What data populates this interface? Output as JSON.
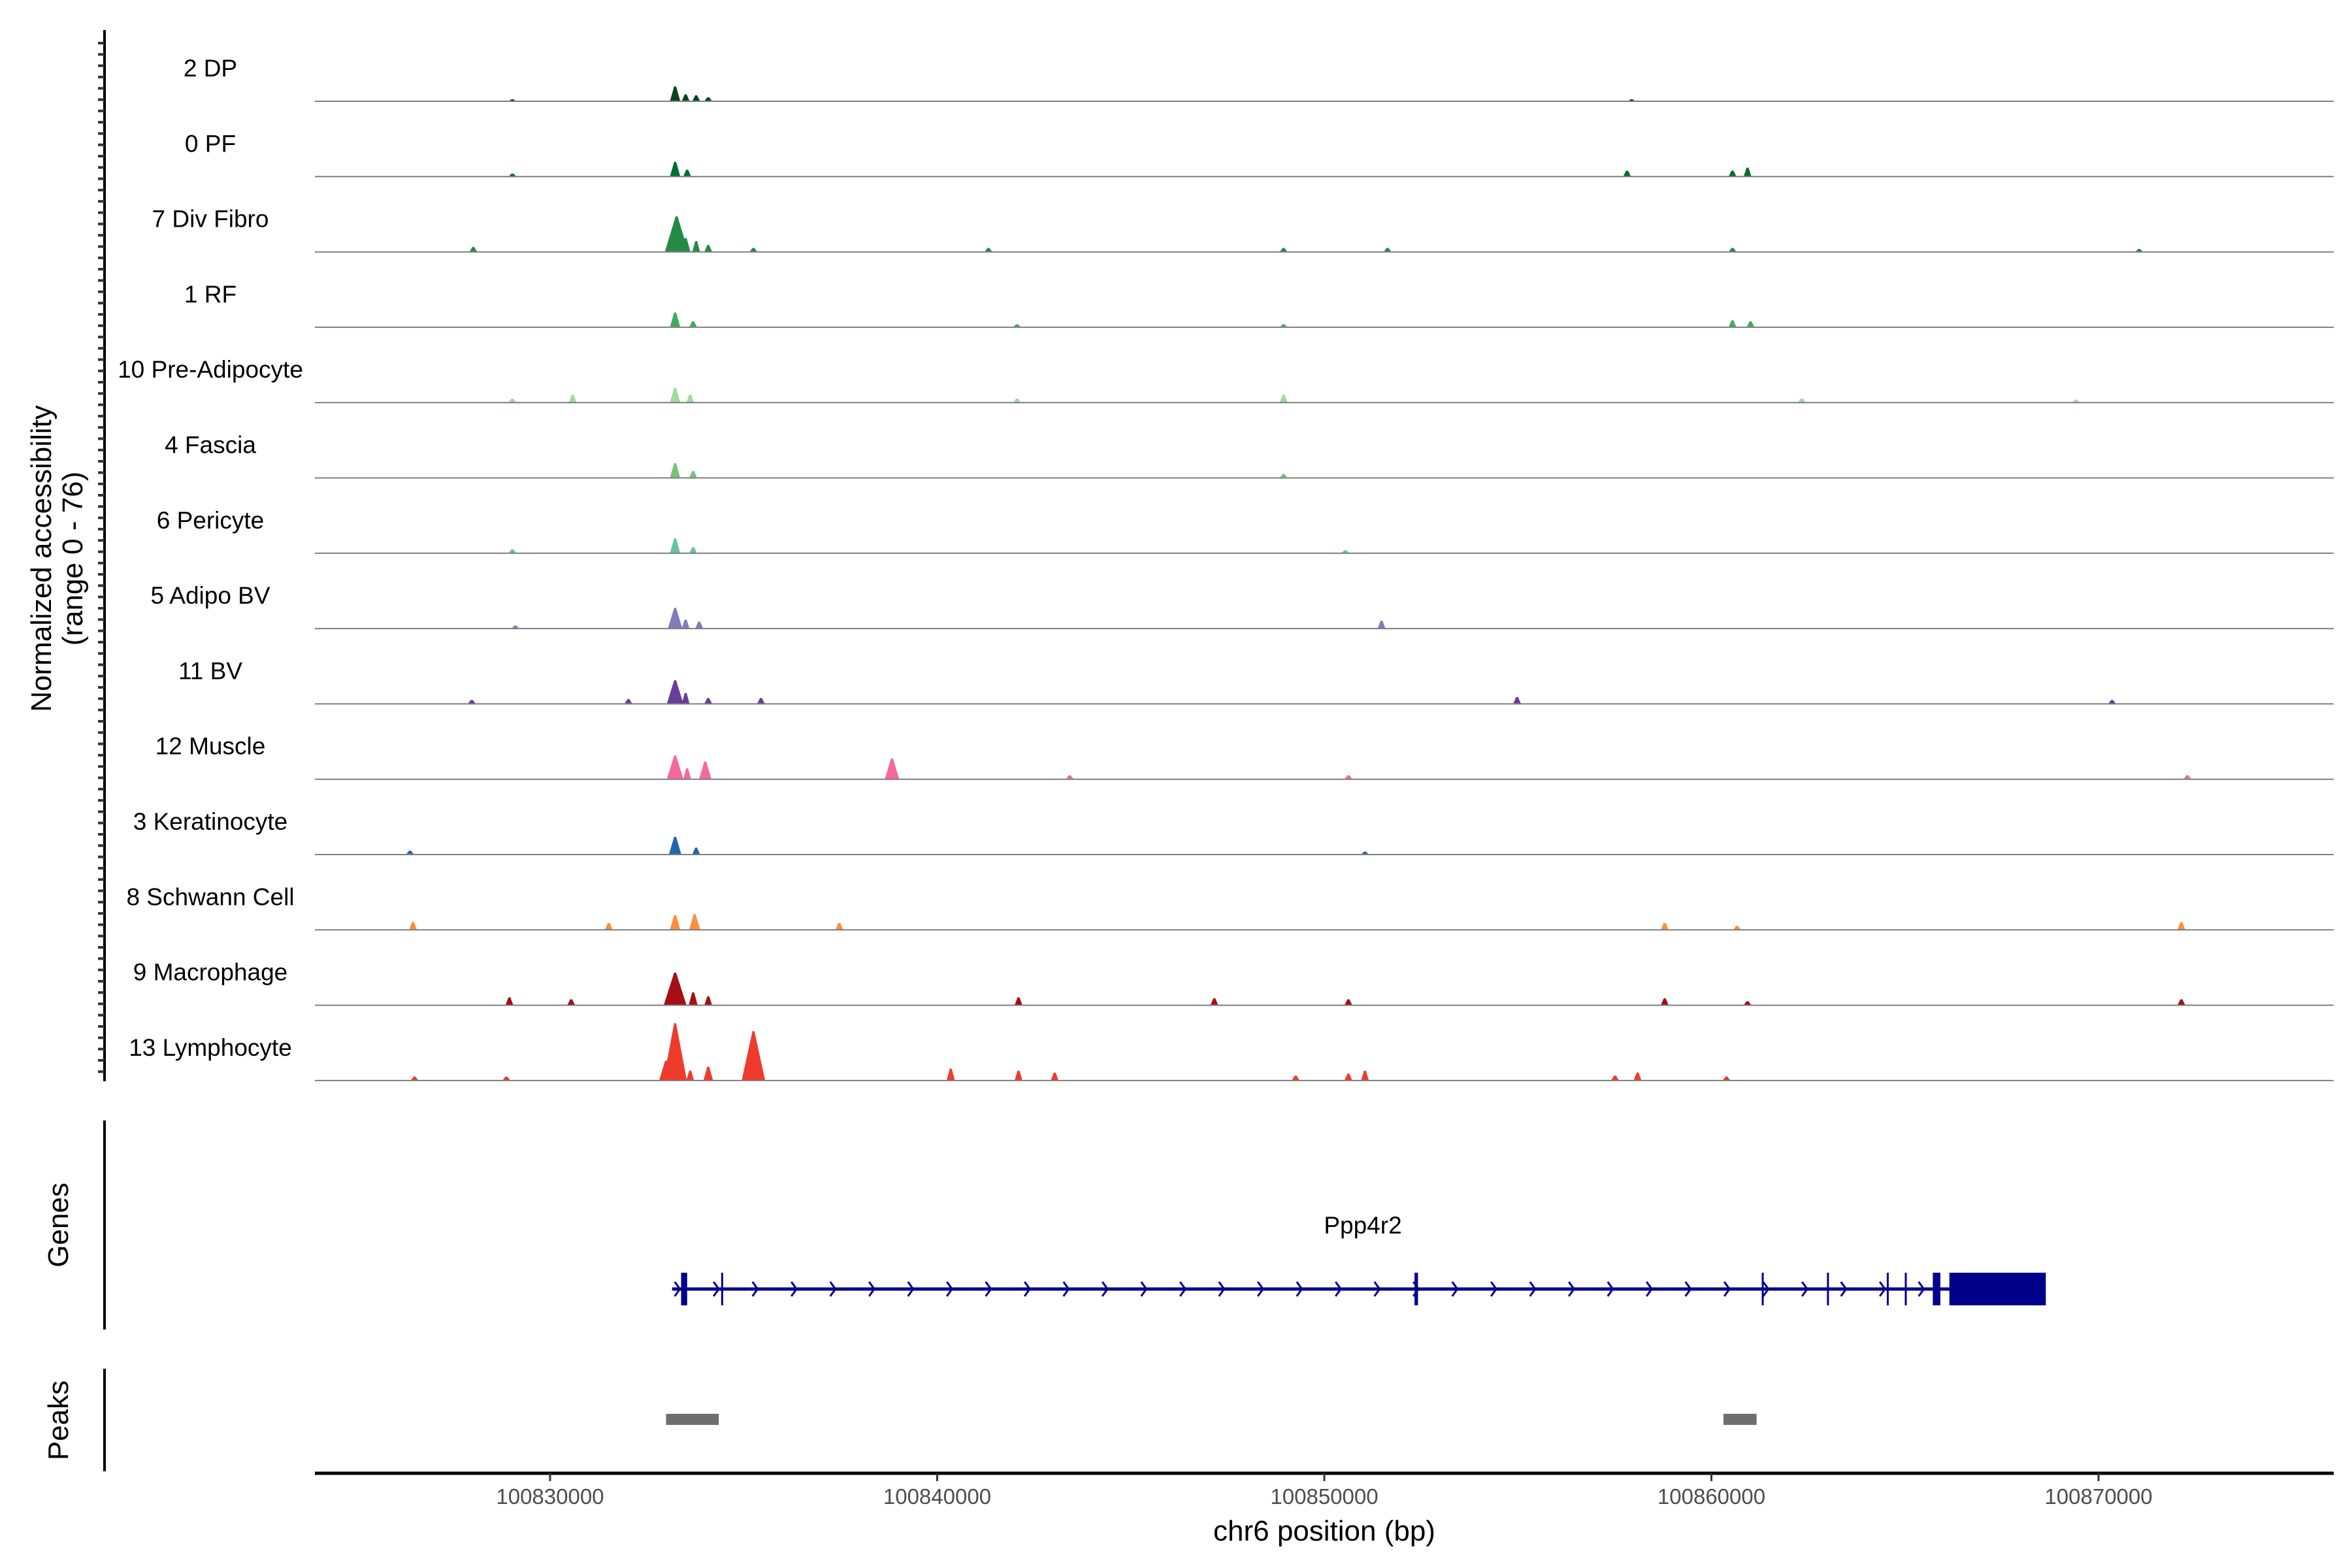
{
  "chart_data": {
    "type": "area",
    "title": "",
    "ylabel": "Normalized accessibility",
    "ylabel_range": "(range 0 - 76)",
    "ylim": [
      0,
      76
    ],
    "xlabel": "chr6 position (bp)",
    "xlim": [
      100823925,
      100876075
    ],
    "xticks": [
      100830000,
      100840000,
      100850000,
      100860000,
      100870000
    ],
    "xtick_labels": [
      "100830000",
      "100840000",
      "100850000",
      "100860000",
      "100870000"
    ],
    "tracks": [
      {
        "name": "2 DP",
        "color": "#00441b",
        "peaks": [
          [
            100833230,
            15
          ],
          [
            100833502,
            7
          ],
          [
            100833774,
            6
          ],
          [
            100834086,
            4
          ],
          [
            100829027,
            2
          ],
          [
            100857938,
            2
          ]
        ]
      },
      {
        "name": "0 PF",
        "color": "#006d2c",
        "peaks": [
          [
            100833230,
            15
          ],
          [
            100833541,
            7
          ],
          [
            100857821,
            6
          ],
          [
            100860544,
            6
          ],
          [
            100860933,
            9
          ],
          [
            100829027,
            3
          ]
        ]
      },
      {
        "name": "7 Div Fibro",
        "color": "#238b45",
        "peaks": [
          [
            100833268,
            36
          ],
          [
            100833502,
            14
          ],
          [
            100833774,
            11
          ],
          [
            100834086,
            7
          ],
          [
            100828016,
            5
          ],
          [
            100835253,
            4
          ],
          [
            100841323,
            4
          ],
          [
            100848949,
            4
          ],
          [
            100851634,
            4
          ],
          [
            100860544,
            4
          ],
          [
            100871050,
            3
          ]
        ]
      },
      {
        "name": "1 RF",
        "color": "#41ab5d",
        "peaks": [
          [
            100833230,
            15
          ],
          [
            100833696,
            6
          ],
          [
            100860544,
            7
          ],
          [
            100861011,
            6
          ],
          [
            100848949,
            3
          ],
          [
            100842062,
            3
          ]
        ]
      },
      {
        "name": "10 Pre-Adipocyte",
        "color": "#a1d99b",
        "peaks": [
          [
            100833230,
            15
          ],
          [
            100833619,
            8
          ],
          [
            100830584,
            8
          ],
          [
            100848949,
            8
          ],
          [
            100842062,
            4
          ],
          [
            100862334,
            4
          ],
          [
            100869416,
            3
          ],
          [
            100829027,
            4
          ]
        ]
      },
      {
        "name": "4 Fascia",
        "color": "#74c476",
        "peaks": [
          [
            100833230,
            15
          ],
          [
            100833696,
            7
          ],
          [
            100848949,
            4
          ]
        ]
      },
      {
        "name": "6 Pericyte",
        "color": "#66c2a4",
        "peaks": [
          [
            100833230,
            15
          ],
          [
            100833696,
            6
          ],
          [
            100829027,
            4
          ],
          [
            100850544,
            3
          ]
        ]
      },
      {
        "name": "5 Adipo BV",
        "color": "#807dba",
        "peaks": [
          [
            100833230,
            21
          ],
          [
            100833502,
            9
          ],
          [
            100833852,
            7
          ],
          [
            100851478,
            8
          ],
          [
            100829105,
            3
          ]
        ]
      },
      {
        "name": "11 BV",
        "color": "#6a3d9a",
        "peaks": [
          [
            100833230,
            24
          ],
          [
            100833502,
            11
          ],
          [
            100834086,
            6
          ],
          [
            100835447,
            6
          ],
          [
            100854980,
            7
          ],
          [
            100870350,
            4
          ],
          [
            100827977,
            4
          ],
          [
            100832023,
            5
          ]
        ]
      },
      {
        "name": "12 Muscle",
        "color": "#f768a1",
        "peaks": [
          [
            100833230,
            24
          ],
          [
            100834008,
            18
          ],
          [
            100833541,
            11
          ],
          [
            100838833,
            21
          ],
          [
            100872296,
            4
          ],
          [
            100843424,
            4
          ],
          [
            100850622,
            4
          ]
        ]
      },
      {
        "name": "3 Keratinocyte",
        "color": "#2166ac",
        "peaks": [
          [
            100833230,
            18
          ],
          [
            100833774,
            7
          ],
          [
            100826381,
            4
          ],
          [
            100851050,
            3
          ]
        ]
      },
      {
        "name": "8 Schwann Cell",
        "color": "#fd8d3c",
        "peaks": [
          [
            100833230,
            15
          ],
          [
            100833735,
            16
          ],
          [
            100826459,
            8
          ],
          [
            100831517,
            7
          ],
          [
            100837471,
            7
          ],
          [
            100858793,
            7
          ],
          [
            100872140,
            8
          ],
          [
            100860661,
            4
          ]
        ]
      },
      {
        "name": "9 Macrophage",
        "color": "#a50f15",
        "peaks": [
          [
            100833230,
            33
          ],
          [
            100833696,
            13
          ],
          [
            100834086,
            9
          ],
          [
            100828949,
            8
          ],
          [
            100842101,
            8
          ],
          [
            100847159,
            7
          ],
          [
            100850622,
            6
          ],
          [
            100858793,
            7
          ],
          [
            100860933,
            4
          ],
          [
            100872140,
            6
          ],
          [
            100830545,
            6
          ]
        ]
      },
      {
        "name": "13 Lymphocyte",
        "color": "#ef3b2c",
        "peaks": [
          [
            100833230,
            58
          ],
          [
            100835253,
            50
          ],
          [
            100832996,
            20
          ],
          [
            100834086,
            14
          ],
          [
            100833619,
            10
          ],
          [
            100840350,
            12
          ],
          [
            100842101,
            10
          ],
          [
            100843035,
            8
          ],
          [
            100851050,
            10
          ],
          [
            100850622,
            7
          ],
          [
            100858093,
            8
          ],
          [
            100857509,
            5
          ],
          [
            100849260,
            5
          ],
          [
            100826498,
            4
          ],
          [
            100828872,
            4
          ],
          [
            100860389,
            4
          ]
        ]
      }
    ],
    "genes": {
      "panel_label": "Genes",
      "name": "Ppp4r2",
      "color": "#00008b",
      "strand": "+",
      "start": 100833152,
      "end": 100868638,
      "exons": [
        [
          100833385,
          100833541
        ],
        [
          100834420,
          100834460
        ],
        [
          100852330,
          100852420
        ],
        [
          100861300,
          100861345
        ],
        [
          100862985,
          100863005
        ],
        [
          100864530,
          100864575
        ],
        [
          100864995,
          100865045
        ],
        [
          100865719,
          100865914
        ],
        [
          100866147,
          100868638
        ]
      ]
    },
    "peaks_track": {
      "panel_label": "Peaks",
      "color": "#6e6e6e",
      "regions": [
        [
          100832996,
          100834358
        ],
        [
          100860311,
          100861167
        ]
      ]
    }
  }
}
